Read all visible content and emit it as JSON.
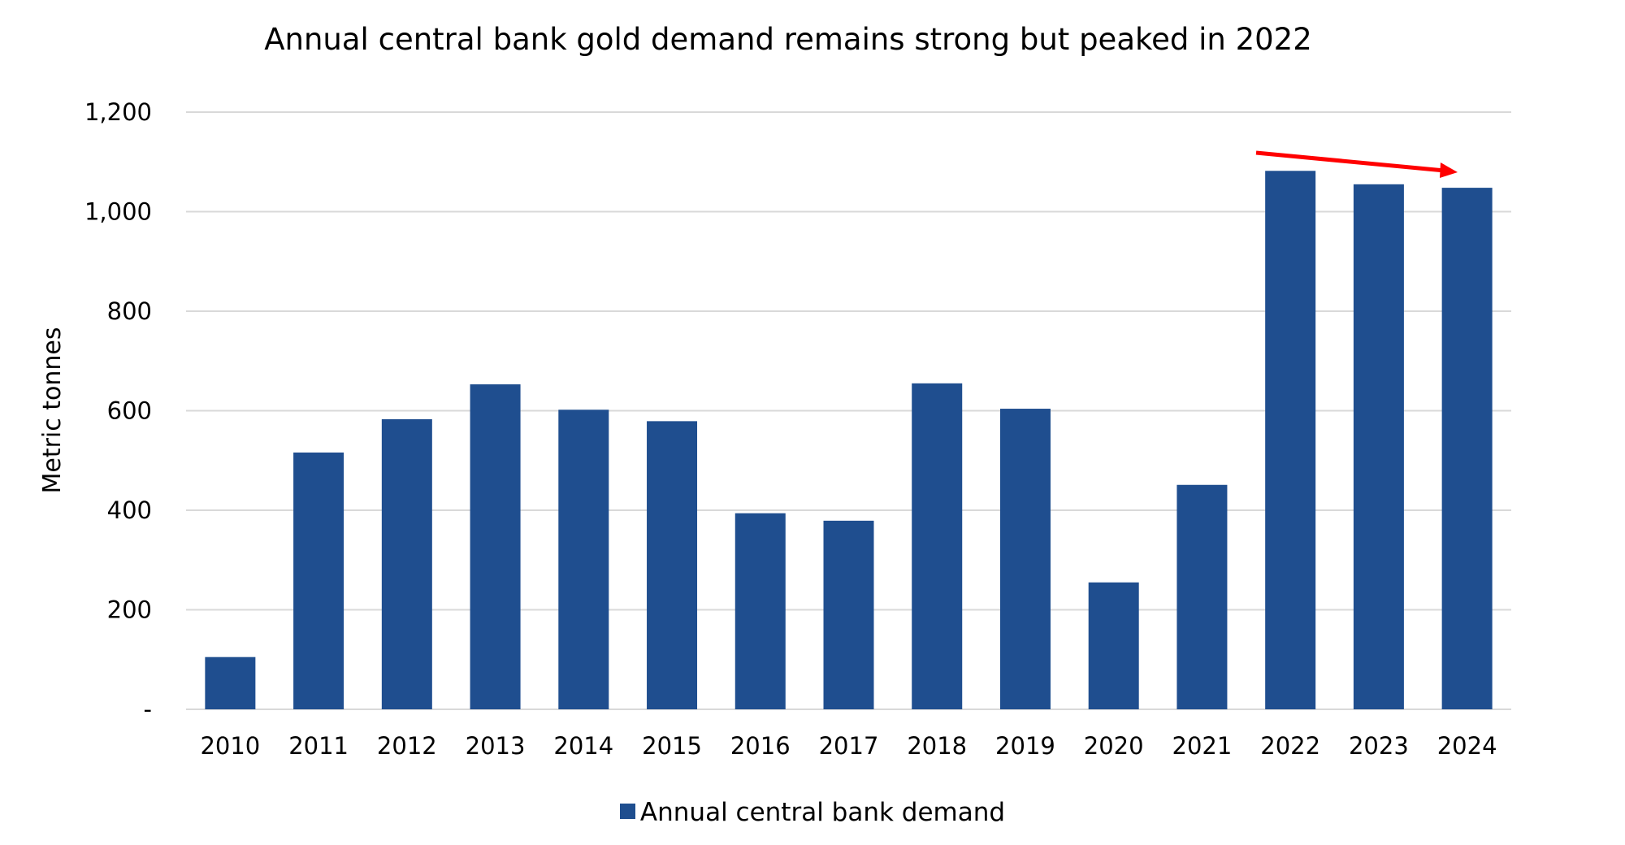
{
  "chart_data": {
    "type": "bar",
    "title": "Annual central bank gold demand remains strong but peaked in 2022",
    "xlabel": "",
    "ylabel": "Metric tonnes",
    "categories": [
      "2010",
      "2011",
      "2012",
      "2013",
      "2014",
      "2015",
      "2016",
      "2017",
      "2018",
      "2019",
      "2020",
      "2021",
      "2022",
      "2023",
      "2024"
    ],
    "series": [
      {
        "name": "Annual central bank demand",
        "values": [
          105,
          516,
          583,
          653,
          602,
          579,
          394,
          379,
          655,
          604,
          255,
          451,
          1082,
          1055,
          1048
        ]
      }
    ],
    "ylim": [
      0,
      1200
    ],
    "yticks": [
      0,
      200,
      400,
      600,
      800,
      1000,
      1200
    ],
    "ytick_labels": [
      "-",
      "200",
      "400",
      "600",
      "800",
      "1,000",
      "1,200"
    ],
    "grid": true,
    "legend": "bottom",
    "annotations": [
      {
        "type": "arrow",
        "from": "2022",
        "to": "2024",
        "meaning": "downward trend",
        "color": "#FF0000"
      }
    ],
    "colors": {
      "bar": "#1F4E8F",
      "grid": "#D9D9D9",
      "arrow": "#FF0000"
    }
  }
}
